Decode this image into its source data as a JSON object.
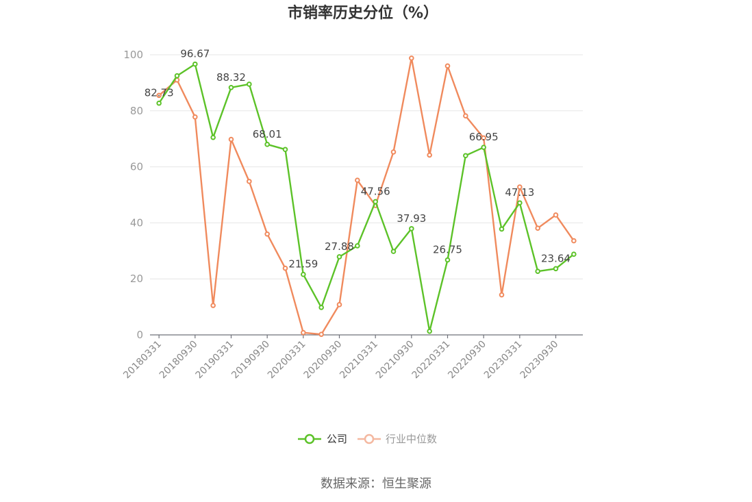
{
  "colors": {
    "company": "#5cc228",
    "industry": "#f08a5d",
    "industry_legend": "#f4b8a0"
  },
  "source_text": "数据来源：恒生聚源",
  "chart_data": {
    "type": "line",
    "title": "市销率历史分位（%）",
    "ylim": [
      0,
      100
    ],
    "y_ticks": [
      "0",
      "20",
      "40",
      "60",
      "80",
      "100"
    ],
    "grid": true,
    "legend_position": "bottom",
    "x": [
      "20180331",
      "20180630",
      "20180930",
      "20181231",
      "20190331",
      "20190630",
      "20190930",
      "20191231",
      "20200331",
      "20200630",
      "20200930",
      "20201231",
      "20210331",
      "20210630",
      "20210930",
      "20211231",
      "20220331",
      "20220630",
      "20220930",
      "20221231",
      "20230331",
      "20230630",
      "20230930",
      "20231231"
    ],
    "x_tick_labels": [
      "20180331",
      "20180930",
      "20190331",
      "20190930",
      "20200331",
      "20200930",
      "20210331",
      "20210930",
      "20220331",
      "20220930",
      "20230331",
      "20230930"
    ],
    "series": [
      {
        "name": "公司",
        "values": [
          82.73,
          92.5,
          96.67,
          70.5,
          88.32,
          89.5,
          68.01,
          66.2,
          21.59,
          9.8,
          27.88,
          31.8,
          47.56,
          29.8,
          37.93,
          1.3,
          26.75,
          64.0,
          66.95,
          37.8,
          47.13,
          22.7,
          23.64,
          28.8
        ],
        "labels": [
          "82.73",
          null,
          "96.67",
          null,
          "88.32",
          null,
          "68.01",
          null,
          "21.59",
          null,
          "27.88",
          null,
          "47.56",
          null,
          "37.93",
          null,
          "26.75",
          null,
          "66.95",
          null,
          "47.13",
          null,
          "23.64",
          null
        ]
      },
      {
        "name": "行业中位数",
        "values": [
          85.5,
          91.0,
          77.8,
          10.5,
          69.8,
          54.8,
          36.0,
          23.8,
          0.8,
          0.2,
          10.8,
          55.2,
          46.2,
          65.3,
          98.8,
          64.2,
          96.0,
          78.2,
          70.3,
          14.3,
          52.8,
          38.1,
          42.8,
          33.6
        ]
      }
    ]
  }
}
